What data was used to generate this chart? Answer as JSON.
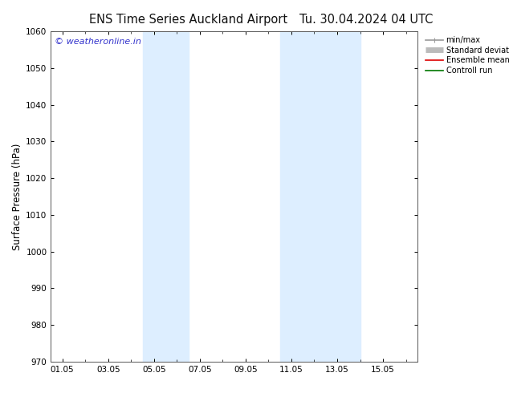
{
  "title": "ENS Time Series Auckland Airport",
  "title_date": "Tu. 30.04.2024 04 UTC",
  "ylabel": "Surface Pressure (hPa)",
  "ylim": [
    970,
    1060
  ],
  "yticks": [
    970,
    980,
    990,
    1000,
    1010,
    1020,
    1030,
    1040,
    1050,
    1060
  ],
  "xtick_labels": [
    "01.05",
    "03.05",
    "05.05",
    "07.05",
    "09.05",
    "11.05",
    "13.05",
    "15.05"
  ],
  "xtick_positions": [
    0,
    2,
    4,
    6,
    8,
    10,
    12,
    14
  ],
  "xlim": [
    -0.5,
    15.5
  ],
  "shaded_bands": [
    {
      "x_start": 3.5,
      "x_end": 5.5,
      "color": "#ddeeff"
    },
    {
      "x_start": 9.5,
      "x_end": 13.0,
      "color": "#ddeeff"
    }
  ],
  "watermark": "© weatheronline.in",
  "watermark_color": "#3333cc",
  "legend_entries": [
    {
      "label": "min/max",
      "color": "#999999",
      "lw": 1.2,
      "style": "line_with_caps"
    },
    {
      "label": "Standard deviation",
      "color": "#bbbbbb",
      "lw": 5,
      "style": "thick"
    },
    {
      "label": "Ensemble mean run",
      "color": "#dd0000",
      "lw": 1.2,
      "style": "line"
    },
    {
      "label": "Controll run",
      "color": "#007700",
      "lw": 1.2,
      "style": "line"
    }
  ],
  "bg_color": "#ffffff",
  "plot_bg_color": "#ffffff",
  "spine_color": "#555555",
  "tick_label_fontsize": 7.5,
  "axis_label_fontsize": 8.5,
  "title_fontsize": 10.5,
  "watermark_fontsize": 8
}
